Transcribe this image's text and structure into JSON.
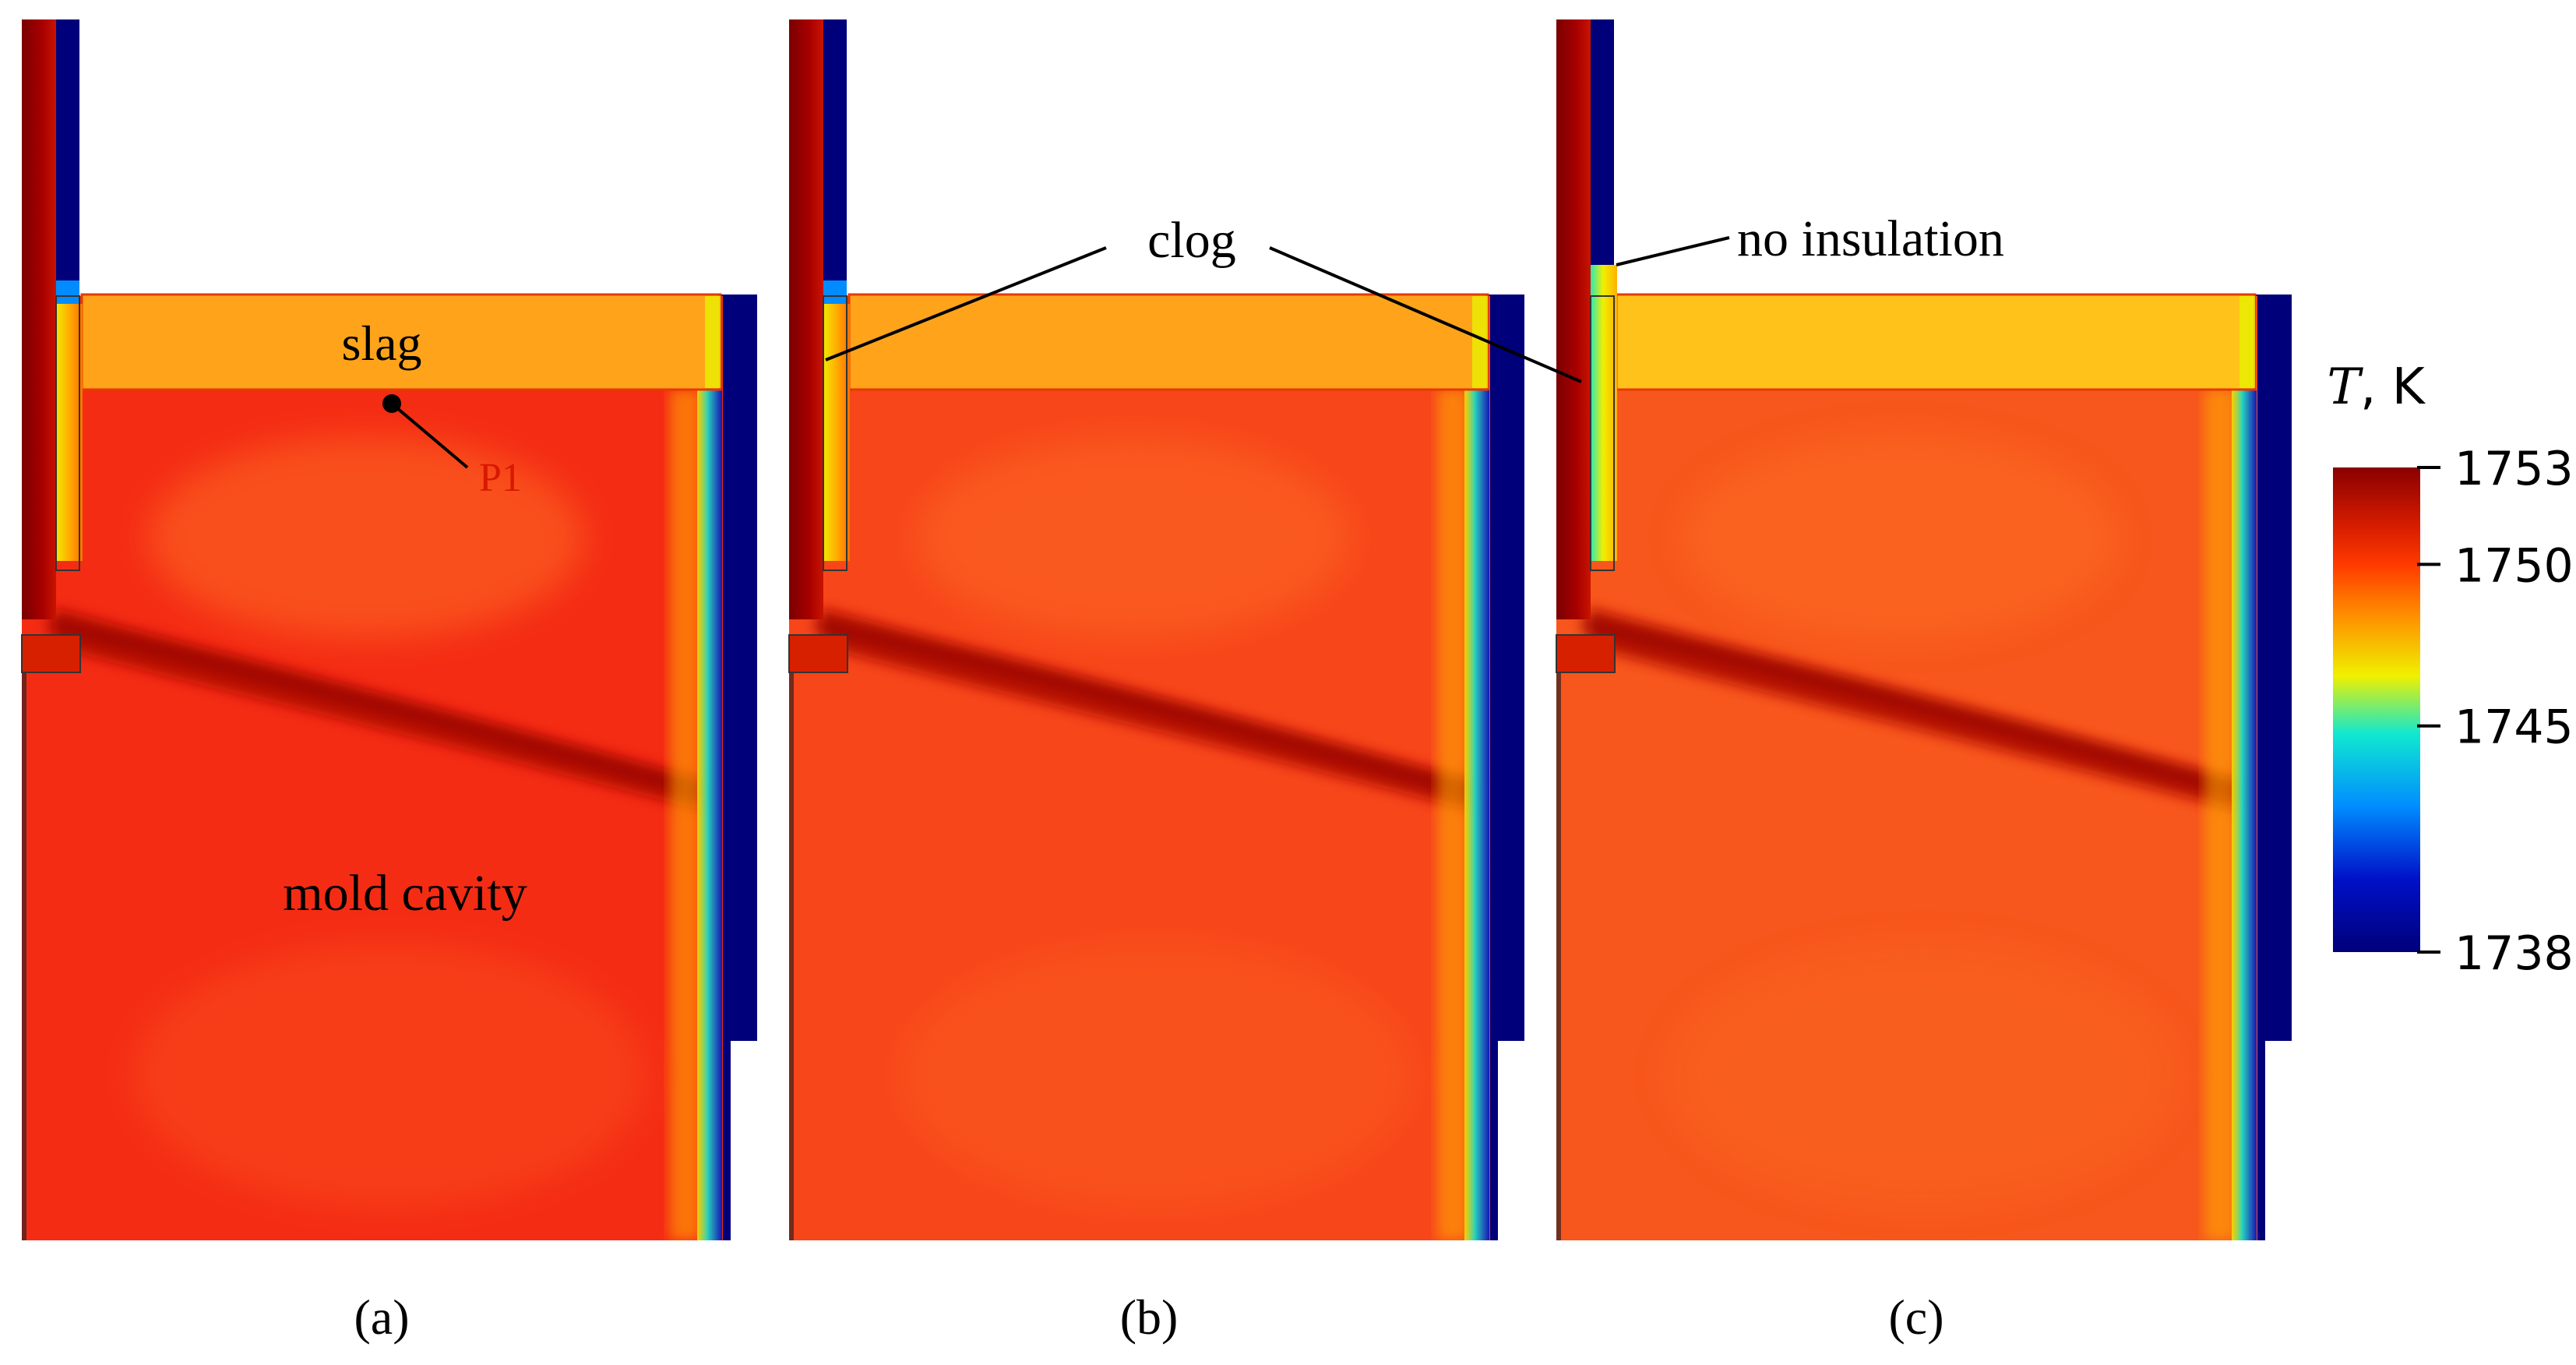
{
  "labels": {
    "slag": "slag",
    "point": "P1",
    "cavity": "mold cavity",
    "clog": "clog",
    "no_insulation": "no insulation"
  },
  "panels": [
    {
      "id": "a",
      "caption": "(a)",
      "bulk_color": "#f42c14"
    },
    {
      "id": "b",
      "caption": "(b)",
      "bulk_color": "#f7461a"
    },
    {
      "id": "c",
      "caption": "(c)",
      "bulk_color": "#f7561c"
    }
  ],
  "colorbar": {
    "title_symbol": "T",
    "title_unit": ", K",
    "min": 1738,
    "max": 1753,
    "ticks": [
      "1753",
      "1750",
      "1745",
      "1738"
    ],
    "tick_values": [
      1753,
      1750,
      1745,
      1738
    ],
    "colors": [
      "#8a0000",
      "#d61c00",
      "#ff3a00",
      "#ff8a00",
      "#f0f000",
      "#10e8d0",
      "#008cff",
      "#0010c8",
      "#00007a"
    ]
  }
}
